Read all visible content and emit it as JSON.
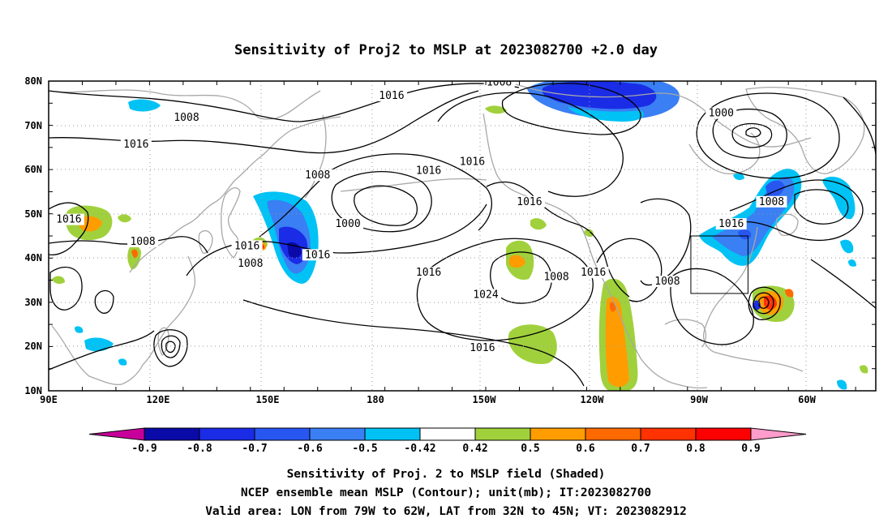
{
  "title": "Sensitivity of Proj2 to MSLP at 2023082700 +2.0 day",
  "lon_axis": [
    "90E",
    "120E",
    "150E",
    "180",
    "150W",
    "120W",
    "90W",
    "60W"
  ],
  "lat_axis": [
    "80N",
    "70N",
    "60N",
    "50N",
    "40N",
    "30N",
    "20N",
    "10N"
  ],
  "colorbar": {
    "labels": [
      "-0.9",
      "-0.8",
      "-0.7",
      "-0.6",
      "-0.5",
      "-0.42",
      "0.42",
      "0.5",
      "0.6",
      "0.7",
      "0.8",
      "0.9"
    ],
    "colors": [
      "#c8009b",
      "#0a0aa8",
      "#1a2ce6",
      "#2856f0",
      "#3a7ff3",
      "#00c2f5",
      "#ffffff",
      "#a0d13c",
      "#ff9d00",
      "#ff6a00",
      "#ff3200",
      "#ff0000",
      "#ff9ccb"
    ]
  },
  "contour_labels": [
    {
      "text": "1008",
      "lon": 131,
      "lat": 71
    },
    {
      "text": "1016",
      "lon": 116,
      "lat": 65
    },
    {
      "text": "1016",
      "lon": 96,
      "lat": 48
    },
    {
      "text": "1008",
      "lon": 118,
      "lat": 43
    },
    {
      "text": "1016",
      "lon": 149,
      "lat": 42
    },
    {
      "text": "1008",
      "lon": 150,
      "lat": 38
    },
    {
      "text": "1008",
      "lon": 170,
      "lat": 58
    },
    {
      "text": "1000",
      "lon": 179,
      "lat": 47
    },
    {
      "text": "1016",
      "lon": 170,
      "lat": 40
    },
    {
      "text": "1016",
      "lon": 192,
      "lat": 76
    },
    {
      "text": "1016",
      "lon": 203,
      "lat": 59
    },
    {
      "text": "1008",
      "lon": 224,
      "lat": 79
    },
    {
      "text": "1016",
      "lon": 216,
      "lat": 61
    },
    {
      "text": "1016",
      "lon": 233,
      "lat": 52
    },
    {
      "text": "1016",
      "lon": 203,
      "lat": 36
    },
    {
      "text": "1024",
      "lon": 220,
      "lat": 31
    },
    {
      "text": "1016",
      "lon": 219,
      "lat": 19
    },
    {
      "text": "1008",
      "lon": 241,
      "lat": 35
    },
    {
      "text": "1016",
      "lon": 252,
      "lat": 36
    },
    {
      "text": "1008",
      "lon": 274,
      "lat": 34
    },
    {
      "text": "1000",
      "lon": 290,
      "lat": 72
    },
    {
      "text": "1008",
      "lon": 305,
      "lat": 52
    },
    {
      "text": "1016",
      "lon": 293,
      "lat": 47
    }
  ],
  "valid_box": {
    "lon_from": 281,
    "lon_to": 298,
    "lat_from": 32,
    "lat_to": 45
  },
  "footer": [
    "Sensitivity of Proj. 2 to MSLP field (Shaded)",
    "NCEP ensemble mean MSLP (Contour); unit(mb); IT:2023082700",
    "Valid area: LON from 79W to 62W, LAT from 32N to 45N; VT: 2023082912"
  ]
}
